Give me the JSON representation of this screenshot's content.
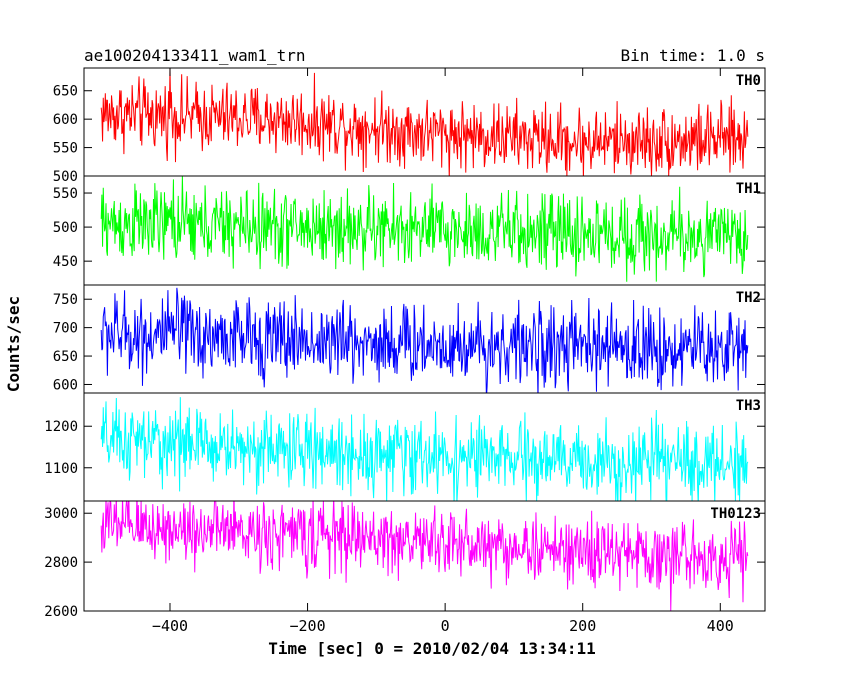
{
  "header": {
    "title": "ae100204133411_wam1_trn",
    "bin_time": "Bin time: 1.0 s"
  },
  "axes": {
    "ylabel": "Counts/sec",
    "xlabel": "Time [sec] 0 = 2010/02/04 13:34:11"
  },
  "chart_data": {
    "type": "line",
    "title": "ae100204133411_wam1_trn",
    "subtitle": "Bin time: 1.0 s",
    "xlabel": "Time [sec] 0 = 2010/02/04 13:34:11",
    "ylabel": "Counts/sec",
    "xlim": [
      -525,
      465
    ],
    "x_range": [
      -500,
      440
    ],
    "x_ticks": [
      -400,
      -200,
      0,
      200,
      400
    ],
    "x_tick_labels": [
      "−400",
      "−200",
      "0",
      "200",
      "400"
    ],
    "grid": false,
    "panels": [
      {
        "name": "TH0",
        "color": "#ff0000",
        "ylim": [
          500,
          690
        ],
        "y_ticks": [
          500,
          550,
          600,
          650
        ],
        "trend": [
          [
            -500,
            610
          ],
          [
            -250,
            600
          ],
          [
            0,
            575
          ],
          [
            200,
            560
          ],
          [
            440,
            565
          ]
        ],
        "noise_amplitude": 30,
        "extremes": [
          500,
          690
        ]
      },
      {
        "name": "TH1",
        "color": "#00ff00",
        "ylim": [
          415,
          575
        ],
        "y_ticks": [
          450,
          500,
          550
        ],
        "trend": [
          [
            -500,
            505
          ],
          [
            -250,
            500
          ],
          [
            0,
            495
          ],
          [
            200,
            490
          ],
          [
            440,
            485
          ]
        ],
        "noise_amplitude": 28,
        "extremes": [
          420,
          570
        ]
      },
      {
        "name": "TH2",
        "color": "#0000ff",
        "ylim": [
          585,
          775
        ],
        "y_ticks": [
          600,
          650,
          700,
          750
        ],
        "trend": [
          [
            -500,
            690
          ],
          [
            -250,
            680
          ],
          [
            0,
            670
          ],
          [
            200,
            665
          ],
          [
            440,
            665
          ]
        ],
        "noise_amplitude": 35,
        "extremes": [
          590,
          770
        ]
      },
      {
        "name": "TH3",
        "color": "#00ffff",
        "ylim": [
          1020,
          1280
        ],
        "y_ticks": [
          1100,
          1200
        ],
        "trend": [
          [
            -500,
            1165
          ],
          [
            -250,
            1145
          ],
          [
            0,
            1125
          ],
          [
            200,
            1115
          ],
          [
            440,
            1110
          ]
        ],
        "noise_amplitude": 45,
        "extremes": [
          1030,
          1270
        ]
      },
      {
        "name": "TH0123",
        "color": "#ff00ff",
        "ylim": [
          2600,
          3050
        ],
        "y_ticks": [
          2600,
          2800,
          3000
        ],
        "trend": [
          [
            -500,
            2950
          ],
          [
            -250,
            2920
          ],
          [
            0,
            2880
          ],
          [
            200,
            2840
          ],
          [
            440,
            2820
          ]
        ],
        "noise_amplitude": 70,
        "extremes": [
          2600,
          3040
        ]
      }
    ]
  }
}
